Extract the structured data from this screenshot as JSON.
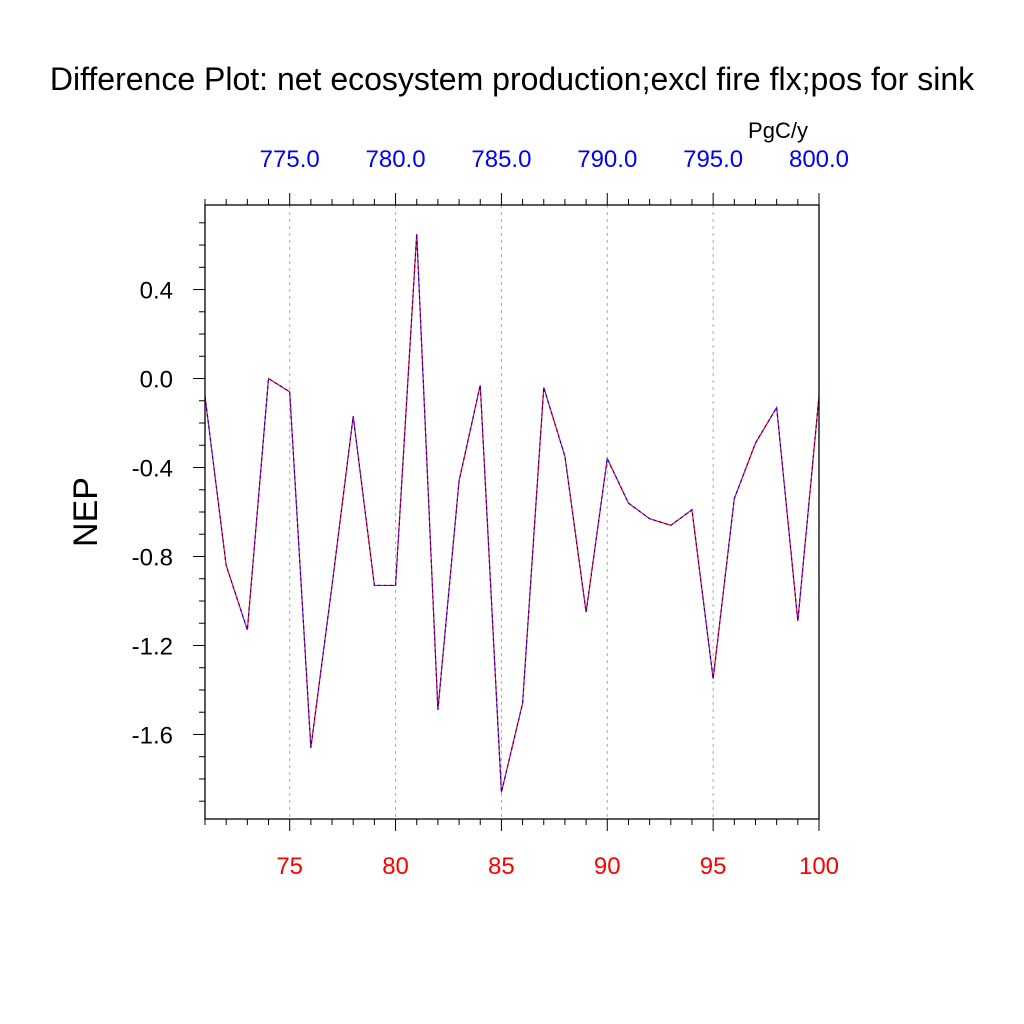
{
  "chart_data": {
    "type": "line",
    "title": "Difference Plot: net ecosystem production;excl fire flx;pos for sink",
    "ylabel": "NEP",
    "xlabel": "",
    "units_label": "PgC/y",
    "x": [
      71,
      72,
      73,
      74,
      75,
      76,
      77,
      78,
      79,
      80,
      81,
      82,
      83,
      84,
      85,
      86,
      87,
      88,
      89,
      90,
      91,
      92,
      93,
      94,
      95,
      96,
      97,
      98,
      99,
      100
    ],
    "xlim": [
      71,
      100
    ],
    "ylim": [
      -1.98,
      0.78
    ],
    "bottom_ticks": [
      "75",
      "80",
      "85",
      "90",
      "95",
      "100"
    ],
    "bottom_tick_values": [
      75,
      80,
      85,
      90,
      95,
      100
    ],
    "top_ticks": [
      "775.0",
      "780.0",
      "785.0",
      "790.0",
      "795.0",
      "800.0"
    ],
    "top_tick_values": [
      75,
      80,
      85,
      90,
      95,
      100
    ],
    "y_ticks": [
      "0.4",
      "0.0",
      "-0.4",
      "-0.8",
      "-1.2",
      "-1.6"
    ],
    "y_tick_values": [
      0.4,
      0.0,
      -0.4,
      -0.8,
      -1.2,
      -1.6
    ],
    "grid": "vertical dashed",
    "series": [
      {
        "color": "#ff0000",
        "style": "solid",
        "values": [
          -0.08,
          -0.84,
          -1.13,
          0.0,
          -0.06,
          -1.66,
          -0.93,
          -0.17,
          -0.93,
          -0.93,
          0.65,
          -1.49,
          -0.46,
          -0.03,
          -1.86,
          -1.46,
          -0.04,
          -0.35,
          -1.05,
          -0.36,
          -0.56,
          -0.63,
          -0.66,
          -0.59,
          -1.35,
          -0.54,
          -0.29,
          -0.13,
          -1.09,
          -0.08
        ]
      },
      {
        "color": "#0000ff",
        "style": "dashed",
        "values": [
          -0.08,
          -0.84,
          -1.13,
          0.0,
          -0.06,
          -1.66,
          -0.93,
          -0.17,
          -0.93,
          -0.93,
          0.65,
          -1.49,
          -0.46,
          -0.03,
          -1.86,
          -1.46,
          -0.04,
          -0.35,
          -1.05,
          -0.36,
          -0.56,
          -0.63,
          -0.66,
          -0.59,
          -1.35,
          -0.54,
          -0.29,
          -0.13,
          -1.09,
          -0.08
        ]
      }
    ],
    "colors": {
      "bottom_tick_labels": "#ff0000",
      "top_tick_labels": "#0000ff",
      "axis": "#000000",
      "grid": "#aaaaaa"
    }
  }
}
